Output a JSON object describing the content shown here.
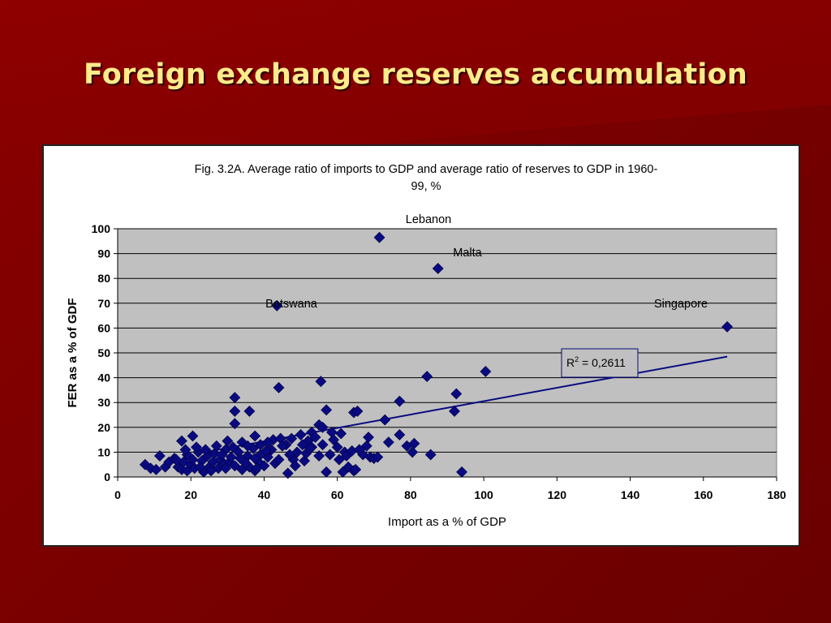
{
  "slide": {
    "title": "Foreign exchange reserves accumulation"
  },
  "colors": {
    "background": "#7a0000",
    "title": "#ffeb8a",
    "marker": "#0a0a80",
    "plot_bg": "#c0c0c0"
  },
  "chart_data": {
    "type": "scatter",
    "title": "Fig. 3.2A. Average ratio of imports to GDP and average ratio of reserves to GDP in 1960-",
    "title_line2": "99, %",
    "xlabel": "Import as a % of GDP",
    "ylabel": "FER as a % of GDF",
    "xlim": [
      0,
      180
    ],
    "ylim": [
      0,
      100
    ],
    "xticks": [
      0,
      20,
      40,
      60,
      80,
      100,
      120,
      140,
      160,
      180
    ],
    "yticks": [
      0,
      10,
      20,
      30,
      40,
      50,
      60,
      70,
      80,
      90,
      100
    ],
    "grid": "horizontal",
    "annotations": {
      "lebanon": "Lebanon",
      "malta": "Malta",
      "botswana": "Botswana",
      "singapore": "Singapore"
    },
    "r2": {
      "prefix": "R",
      "sup": "2",
      "suffix": " = 0,2611"
    },
    "trendline": {
      "x": [
        22,
        166.5
      ],
      "y": [
        9.5,
        48.5
      ]
    },
    "points": [
      [
        71.5,
        96.5
      ],
      [
        87.5,
        84
      ],
      [
        43.5,
        69
      ],
      [
        166.5,
        60.5
      ],
      [
        100.5,
        42.5
      ],
      [
        84.5,
        40.5
      ],
      [
        55.5,
        38.5
      ],
      [
        44,
        36
      ],
      [
        92.5,
        33.5
      ],
      [
        32,
        32
      ],
      [
        77,
        30.5
      ],
      [
        32,
        26.5
      ],
      [
        36,
        26.5
      ],
      [
        57,
        27
      ],
      [
        64.5,
        26
      ],
      [
        65.5,
        26.5
      ],
      [
        92,
        26.5
      ],
      [
        73,
        23
      ],
      [
        32,
        21.5
      ],
      [
        55,
        21
      ],
      [
        56,
        20
      ],
      [
        53,
        18
      ],
      [
        61,
        17.5
      ],
      [
        68.5,
        16
      ],
      [
        77,
        17
      ],
      [
        37.5,
        16.5
      ],
      [
        20.5,
        16.5
      ],
      [
        17.5,
        14.5
      ],
      [
        42.5,
        15
      ],
      [
        44.5,
        15.5
      ],
      [
        47.5,
        15.5
      ],
      [
        50,
        17
      ],
      [
        59,
        15
      ],
      [
        74,
        14
      ],
      [
        79,
        12.5
      ],
      [
        80.5,
        10
      ],
      [
        85.5,
        9
      ],
      [
        81,
        13.5
      ],
      [
        30,
        14.5
      ],
      [
        34,
        14
      ],
      [
        39,
        13
      ],
      [
        41,
        14
      ],
      [
        46,
        13
      ],
      [
        52,
        14.5
      ],
      [
        56,
        13
      ],
      [
        60,
        12
      ],
      [
        62,
        10
      ],
      [
        67,
        9
      ],
      [
        69,
        8
      ],
      [
        70,
        7.5
      ],
      [
        64,
        10.5
      ],
      [
        7.5,
        5
      ],
      [
        9,
        3.5
      ],
      [
        10.5,
        3
      ],
      [
        11.5,
        8.5
      ],
      [
        13,
        4
      ],
      [
        14,
        6
      ],
      [
        15.5,
        7.5
      ],
      [
        16.5,
        4
      ],
      [
        17.5,
        3
      ],
      [
        18,
        6
      ],
      [
        19,
        9
      ],
      [
        20,
        5
      ],
      [
        20.5,
        7
      ],
      [
        21,
        3.5
      ],
      [
        22,
        10
      ],
      [
        23,
        6.5
      ],
      [
        23.5,
        2
      ],
      [
        24.5,
        8.5
      ],
      [
        25,
        4
      ],
      [
        26,
        6
      ],
      [
        26.5,
        9.5
      ],
      [
        27.5,
        3.5
      ],
      [
        28,
        7
      ],
      [
        29,
        5
      ],
      [
        29.5,
        11
      ],
      [
        30.5,
        6
      ],
      [
        31,
        8
      ],
      [
        32,
        4.5
      ],
      [
        33,
        10
      ],
      [
        34,
        3
      ],
      [
        34.5,
        6.5
      ],
      [
        35.5,
        8.5
      ],
      [
        36,
        4
      ],
      [
        37,
        11.5
      ],
      [
        37.5,
        2.5
      ],
      [
        38.5,
        6
      ],
      [
        39,
        9
      ],
      [
        40,
        4.5
      ],
      [
        41,
        8
      ],
      [
        42,
        11
      ],
      [
        43,
        5.5
      ],
      [
        46.5,
        1.5
      ],
      [
        48,
        7
      ],
      [
        49,
        10
      ],
      [
        51,
        6.5
      ],
      [
        51.5,
        9.5
      ],
      [
        53,
        12
      ],
      [
        55,
        8.5
      ],
      [
        57,
        2
      ],
      [
        58,
        9
      ],
      [
        60.5,
        7
      ],
      [
        61.5,
        2
      ],
      [
        63,
        4
      ],
      [
        64.5,
        2.5
      ],
      [
        65,
        3
      ],
      [
        68,
        12.5
      ],
      [
        71,
        8
      ],
      [
        94,
        2
      ],
      [
        19,
        2.5
      ],
      [
        21.5,
        12
      ],
      [
        24,
        11
      ],
      [
        27,
        12.5
      ],
      [
        28.5,
        9
      ],
      [
        31.5,
        12
      ],
      [
        33.5,
        7.5
      ],
      [
        35,
        5.5
      ],
      [
        37.5,
        7.5
      ],
      [
        40.5,
        10.5
      ],
      [
        45,
        12.5
      ],
      [
        47,
        9
      ],
      [
        50.5,
        13
      ],
      [
        54,
        16
      ],
      [
        58.5,
        18
      ],
      [
        62.5,
        8.5
      ],
      [
        66,
        11
      ],
      [
        16,
        7
      ],
      [
        18.5,
        11
      ],
      [
        22.5,
        4
      ],
      [
        25.5,
        2.5
      ],
      [
        29.5,
        3.5
      ],
      [
        35.5,
        12.5
      ],
      [
        38,
        3.5
      ],
      [
        44,
        7
      ],
      [
        48.5,
        4.5
      ],
      [
        52.5,
        11.5
      ]
    ]
  }
}
